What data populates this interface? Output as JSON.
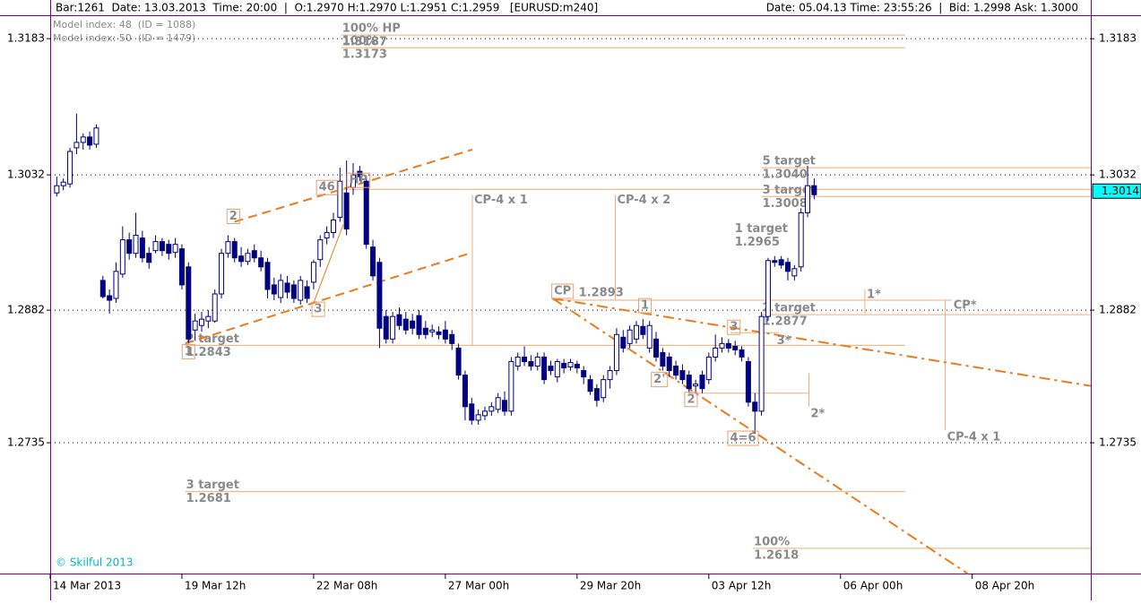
{
  "chart_data": {
    "type": "candlestick",
    "header_left": "Bar:1261  Date: 13.03.2013  Time: 20:00  |  O:1.2970 H:1.2970 L:1.2951 C:1.2959   [EURUSD:m240]",
    "header_right": "Date: 05.04.13 Time: 23:55:26  |  Bid: 1.2998 Ask: 1.3000",
    "notes": [
      "Model index: 48  (ID = 1088)",
      "Model index: 50  (ID = 1479)"
    ],
    "copyright": "© Skilful 2013",
    "up_color": "#ffffff",
    "down_color": "#000080",
    "grid": true,
    "xlim": [
      0,
      158
    ],
    "xticks": [
      {
        "value": 0,
        "label": "14 Mar 2013"
      },
      {
        "value": 20,
        "label": "19 Mar 12h"
      },
      {
        "value": 40,
        "label": "22 Mar 08h"
      },
      {
        "value": 60,
        "label": "27 Mar 00h"
      },
      {
        "value": 80,
        "label": "29 Mar 20h"
      },
      {
        "value": 100,
        "label": "03 Apr 12h"
      },
      {
        "value": 120,
        "label": "06 Apr 00h"
      },
      {
        "value": 140,
        "label": "08 Apr 20h"
      }
    ],
    "ylim": [
      1.259,
      1.3208
    ],
    "yticks": [
      1.3183,
      1.3032,
      1.2882,
      1.2735
    ],
    "last_price": 1.3014,
    "x": [
      1,
      2,
      3,
      4,
      5,
      6,
      7,
      8,
      9,
      10,
      11,
      12,
      13,
      14,
      15,
      16,
      17,
      18,
      19,
      20,
      21,
      22,
      23,
      24,
      25,
      26,
      27,
      28,
      29,
      30,
      31,
      32,
      33,
      34,
      35,
      36,
      37,
      38,
      39,
      40,
      41,
      42,
      43,
      44,
      45,
      46,
      47,
      48,
      49,
      50,
      51,
      52,
      53,
      54,
      55,
      56,
      57,
      58,
      59,
      60,
      61,
      62,
      63,
      64,
      65,
      66,
      67,
      68,
      69,
      70,
      71,
      72,
      73,
      74,
      75,
      76,
      77,
      78,
      79,
      80,
      81,
      82,
      83,
      84,
      85,
      86,
      87,
      88,
      89,
      90,
      91,
      92,
      93,
      94,
      95,
      96,
      97,
      98,
      99,
      100,
      101,
      102,
      103,
      104,
      105,
      106,
      107,
      108,
      109,
      110,
      111,
      112,
      113,
      114,
      115,
      116
    ],
    "open": [
      1.3012,
      1.302,
      1.3022,
      1.3062,
      1.3068,
      1.3074,
      1.3066,
      1.2915,
      1.2898,
      1.2895,
      1.2922,
      1.296,
      1.2945,
      1.2962,
      1.2945,
      1.2948,
      1.2958,
      1.2955,
      1.2946,
      1.295,
      1.293,
      1.286,
      1.2865,
      1.287,
      1.287,
      1.29,
      1.2945,
      1.2958,
      1.2942,
      1.2936,
      1.2948,
      1.294,
      1.2935,
      1.291,
      1.2896,
      1.2912,
      1.291,
      1.2893,
      1.2908,
      1.2913,
      1.2938,
      1.2962,
      1.2968,
      1.2985,
      1.3012,
      1.3018,
      1.3036,
      1.3025,
      1.2952,
      1.2935,
      1.2875,
      1.285,
      1.2877,
      1.2872,
      1.287,
      1.2876,
      1.2862,
      1.2858,
      1.2858,
      1.286,
      1.2855,
      1.284,
      1.281,
      1.2778,
      1.276,
      1.2765,
      1.277,
      1.2772,
      1.2782,
      1.277,
      1.282,
      1.283,
      1.2825,
      1.282,
      1.283,
      1.282,
      1.2808,
      1.2823,
      1.2819,
      1.2822,
      1.2815,
      1.2805,
      1.2795,
      1.2785,
      1.2805,
      1.2815,
      1.2852,
      1.2845,
      1.285,
      1.2864,
      1.284,
      1.285,
      1.2835,
      1.283,
      1.282,
      1.2815,
      1.281,
      1.2798,
      1.281,
      1.2805,
      1.283,
      1.284,
      1.2845,
      1.2842,
      1.2838,
      1.2825,
      1.278,
      1.277,
      1.2875,
      1.2937,
      1.2938,
      1.2935,
      1.292,
      1.293,
      1.299,
      1.302
    ],
    "high": [
      1.303,
      1.3028,
      1.3062,
      1.31,
      1.3078,
      1.308,
      1.3088,
      1.292,
      1.2905,
      1.2935,
      1.2975,
      1.2968,
      1.299,
      1.297,
      1.2952,
      1.2965,
      1.2962,
      1.296,
      1.2962,
      1.2955,
      1.2935,
      1.2878,
      1.288,
      1.2882,
      1.2905,
      1.295,
      1.2965,
      1.2962,
      1.2952,
      1.295,
      1.2955,
      1.2948,
      1.294,
      1.2918,
      1.2922,
      1.292,
      1.2915,
      1.292,
      1.2915,
      1.2938,
      1.2965,
      1.2975,
      1.299,
      1.304,
      1.3048,
      1.3045,
      1.3042,
      1.303,
      1.296,
      1.294,
      1.2882,
      1.288,
      1.2885,
      1.288,
      1.2878,
      1.2882,
      1.287,
      1.2866,
      1.2864,
      1.287,
      1.286,
      1.2845,
      1.2815,
      1.2785,
      1.2772,
      1.2775,
      1.278,
      1.279,
      1.2792,
      1.283,
      1.2835,
      1.2842,
      1.2832,
      1.2835,
      1.2835,
      1.2826,
      1.2828,
      1.2828,
      1.2828,
      1.2826,
      1.282,
      1.281,
      1.28,
      1.281,
      1.282,
      1.2862,
      1.286,
      1.2865,
      1.287,
      1.2872,
      1.287,
      1.2858,
      1.284,
      1.2835,
      1.2826,
      1.2822,
      1.2815,
      1.2805,
      1.2815,
      1.2835,
      1.2855,
      1.2852,
      1.285,
      1.2848,
      1.2842,
      1.283,
      1.279,
      1.288,
      1.294,
      1.2942,
      1.2942,
      1.294,
      1.2932,
      1.2995,
      1.3042,
      1.3028
    ],
    "low": [
      1.3008,
      1.3015,
      1.3018,
      1.3055,
      1.306,
      1.306,
      1.3062,
      1.2895,
      1.2878,
      1.289,
      1.2918,
      1.2938,
      1.294,
      1.2935,
      1.2928,
      1.2945,
      1.2942,
      1.2938,
      1.294,
      1.2905,
      1.2845,
      1.2848,
      1.2858,
      1.2862,
      1.2868,
      1.2895,
      1.294,
      1.2935,
      1.293,
      1.2932,
      1.2935,
      1.2925,
      1.2895,
      1.2893,
      1.289,
      1.2895,
      1.289,
      1.2888,
      1.289,
      1.2905,
      1.293,
      1.2955,
      1.2962,
      1.298,
      1.2965,
      1.301,
      1.3025,
      1.295,
      1.2915,
      1.284,
      1.2845,
      1.2845,
      1.286,
      1.2855,
      1.2855,
      1.285,
      1.285,
      1.2852,
      1.285,
      1.2845,
      1.2838,
      1.2805,
      1.276,
      1.2755,
      1.2755,
      1.276,
      1.2765,
      1.2768,
      1.2765,
      1.2765,
      1.2815,
      1.282,
      1.2815,
      1.2815,
      1.28,
      1.281,
      1.2802,
      1.2812,
      1.2815,
      1.2812,
      1.28,
      1.2788,
      1.2775,
      1.278,
      1.2795,
      1.281,
      1.2835,
      1.284,
      1.2845,
      1.285,
      1.2835,
      1.2825,
      1.2815,
      1.2808,
      1.2805,
      1.28,
      1.279,
      1.279,
      1.279,
      1.28,
      1.2825,
      1.2835,
      1.2835,
      1.2832,
      1.2825,
      1.2775,
      1.2745,
      1.2765,
      1.287,
      1.293,
      1.2928,
      1.2915,
      1.2915,
      1.2925,
      1.2985,
      1.3005
    ],
    "close": [
      1.302,
      1.3024,
      1.3058,
      1.3068,
      1.3074,
      1.3065,
      1.3084,
      1.2897,
      1.2893,
      1.2925,
      1.296,
      1.2945,
      1.2965,
      1.294,
      1.2935,
      1.2958,
      1.2948,
      1.2945,
      1.2955,
      1.291,
      1.285,
      1.287,
      1.2872,
      1.2875,
      1.29,
      1.2945,
      1.2958,
      1.294,
      1.2936,
      1.2945,
      1.294,
      1.293,
      1.2905,
      1.29,
      1.2915,
      1.2902,
      1.2895,
      1.2915,
      1.2895,
      1.2935,
      1.296,
      1.2968,
      1.2982,
      1.3025,
      1.2972,
      1.3032,
      1.303,
      1.2955,
      1.292,
      1.2862,
      1.285,
      1.2875,
      1.2865,
      1.286,
      1.2862,
      1.2855,
      1.2855,
      1.286,
      1.2855,
      1.285,
      1.2845,
      1.281,
      1.2775,
      1.276,
      1.2766,
      1.277,
      1.2775,
      1.2785,
      1.277,
      1.2825,
      1.283,
      1.2825,
      1.282,
      1.283,
      1.2805,
      1.2815,
      1.2825,
      1.2818,
      1.2824,
      1.2818,
      1.2808,
      1.2792,
      1.2782,
      1.2805,
      1.2815,
      1.2855,
      1.284,
      1.286,
      1.2865,
      1.2855,
      1.2865,
      1.283,
      1.282,
      1.2815,
      1.281,
      1.2805,
      1.2795,
      1.28,
      1.2795,
      1.283,
      1.284,
      1.2845,
      1.284,
      1.2838,
      1.283,
      1.278,
      1.277,
      1.2875,
      1.2937,
      1.2935,
      1.2932,
      1.2925,
      1.2928,
      1.299,
      1.302,
      1.301
    ],
    "levels": [
      {
        "value": 1.3187,
        "from": 44.2,
        "to": 129.8,
        "labels": [
          "100% HP",
          "1.3187"
        ]
      },
      {
        "value": 1.3173,
        "from": 44.2,
        "to": 129.8,
        "labels": [
          "100%",
          "1.3173"
        ]
      },
      {
        "value": 1.304,
        "from": 108,
        "to": 158,
        "labels": [
          "5 target",
          "1.3040"
        ]
      },
      {
        "value": 1.3016,
        "from": 44.1,
        "to": 158
      },
      {
        "value": 1.3008,
        "from": 108,
        "to": 158,
        "labels": [
          "3 target",
          "1.3008"
        ]
      },
      {
        "value": 1.2965,
        "from": 103.8,
        "labels": [
          "1 target",
          "1.2965"
        ]
      },
      {
        "value": 1.2893,
        "from": 76.3,
        "to": 136.9,
        "labels": [
          "1.2893"
        ]
      },
      {
        "value": 1.2877,
        "from": 108,
        "to": 158,
        "labels": [
          "2 target",
          "1.2877"
        ]
      },
      {
        "value": 1.2843,
        "from": 20.5,
        "to": 129.8,
        "labels": [
          "2 target",
          "1.2843"
        ]
      },
      {
        "value": 1.2857,
        "from": 103.3,
        "to": 110.6
      },
      {
        "value": 1.279,
        "from": 97.1,
        "to": 115.2
      },
      {
        "value": 1.2681,
        "from": 20.5,
        "to": 129.8,
        "labels": [
          "3 target",
          "1.2681"
        ]
      },
      {
        "value": 1.2618,
        "from": 106.7,
        "to": 158,
        "labels": [
          "100%",
          "1.2618"
        ]
      }
    ],
    "verticals": [
      {
        "x": 64.1,
        "from": 1.2843,
        "to": 1.301,
        "label": "CP-4 x 1",
        "label_at": "top"
      },
      {
        "x": 85.8,
        "from": 1.2893,
        "to": 1.301,
        "label": "CP-4 x 2",
        "label_at": "top"
      },
      {
        "x": 135.9,
        "from": 1.2749,
        "to": 1.2893,
        "label": "CP-4 x 1",
        "label_at": "bottom"
      },
      {
        "x": 123.7,
        "from": 1.2878,
        "to": 1.2905,
        "label": "1*",
        "label_at": "top"
      },
      {
        "x": 115.2,
        "from": 1.2775,
        "to": 1.2812,
        "label": "2*",
        "label_at": "bottom"
      }
    ],
    "trends": [
      {
        "from": [
          28.0,
          1.298
        ],
        "to": [
          64.1,
          1.306
        ],
        "style": "dash"
      },
      {
        "from": [
          20.5,
          1.2845
        ],
        "to": [
          64.1,
          1.2946
        ],
        "style": "dash"
      },
      {
        "from": [
          76.3,
          1.2895
        ],
        "to": [
          158,
          1.2798
        ],
        "style": "dashdot"
      },
      {
        "from": [
          76.3,
          1.2895
        ],
        "to": [
          139.3,
          1.259
        ],
        "style": "dashdot"
      },
      {
        "from": [
          40.0,
          1.289
        ],
        "to": [
          44.5,
          1.2977
        ],
        "style": "solid"
      }
    ],
    "tags": [
      {
        "label": "2",
        "x": 27.8,
        "y": 1.2986,
        "boxed": true
      },
      {
        "label": "46",
        "x": 42.0,
        "y": 1.3018,
        "boxed": true
      },
      {
        "label": "HP",
        "x": 46.8,
        "y": 1.3026,
        "boxed": true
      },
      {
        "label": "3",
        "x": 40.7,
        "y": 1.2883,
        "boxed": true
      },
      {
        "label": "1",
        "x": 21.0,
        "y": 1.2836,
        "boxed": true
      },
      {
        "label": "CP",
        "x": 77.8,
        "y": 1.2903,
        "boxed": true
      },
      {
        "label": "1",
        "x": 90.3,
        "y": 1.2887,
        "boxed": true
      },
      {
        "label": "2'",
        "x": 92.5,
        "y": 1.2805,
        "boxed": true
      },
      {
        "label": "2",
        "x": 97.3,
        "y": 1.2783,
        "boxed": true
      },
      {
        "label": "3",
        "x": 103.8,
        "y": 1.2863,
        "boxed": true
      },
      {
        "label": "4=6",
        "x": 105.2,
        "y": 1.274,
        "boxed": true
      },
      {
        "label": "3*",
        "x": 111.4,
        "y": 1.2848,
        "boxed": false
      },
      {
        "label": "CP*",
        "x": 138.9,
        "y": 1.2887,
        "boxed": false
      }
    ]
  }
}
